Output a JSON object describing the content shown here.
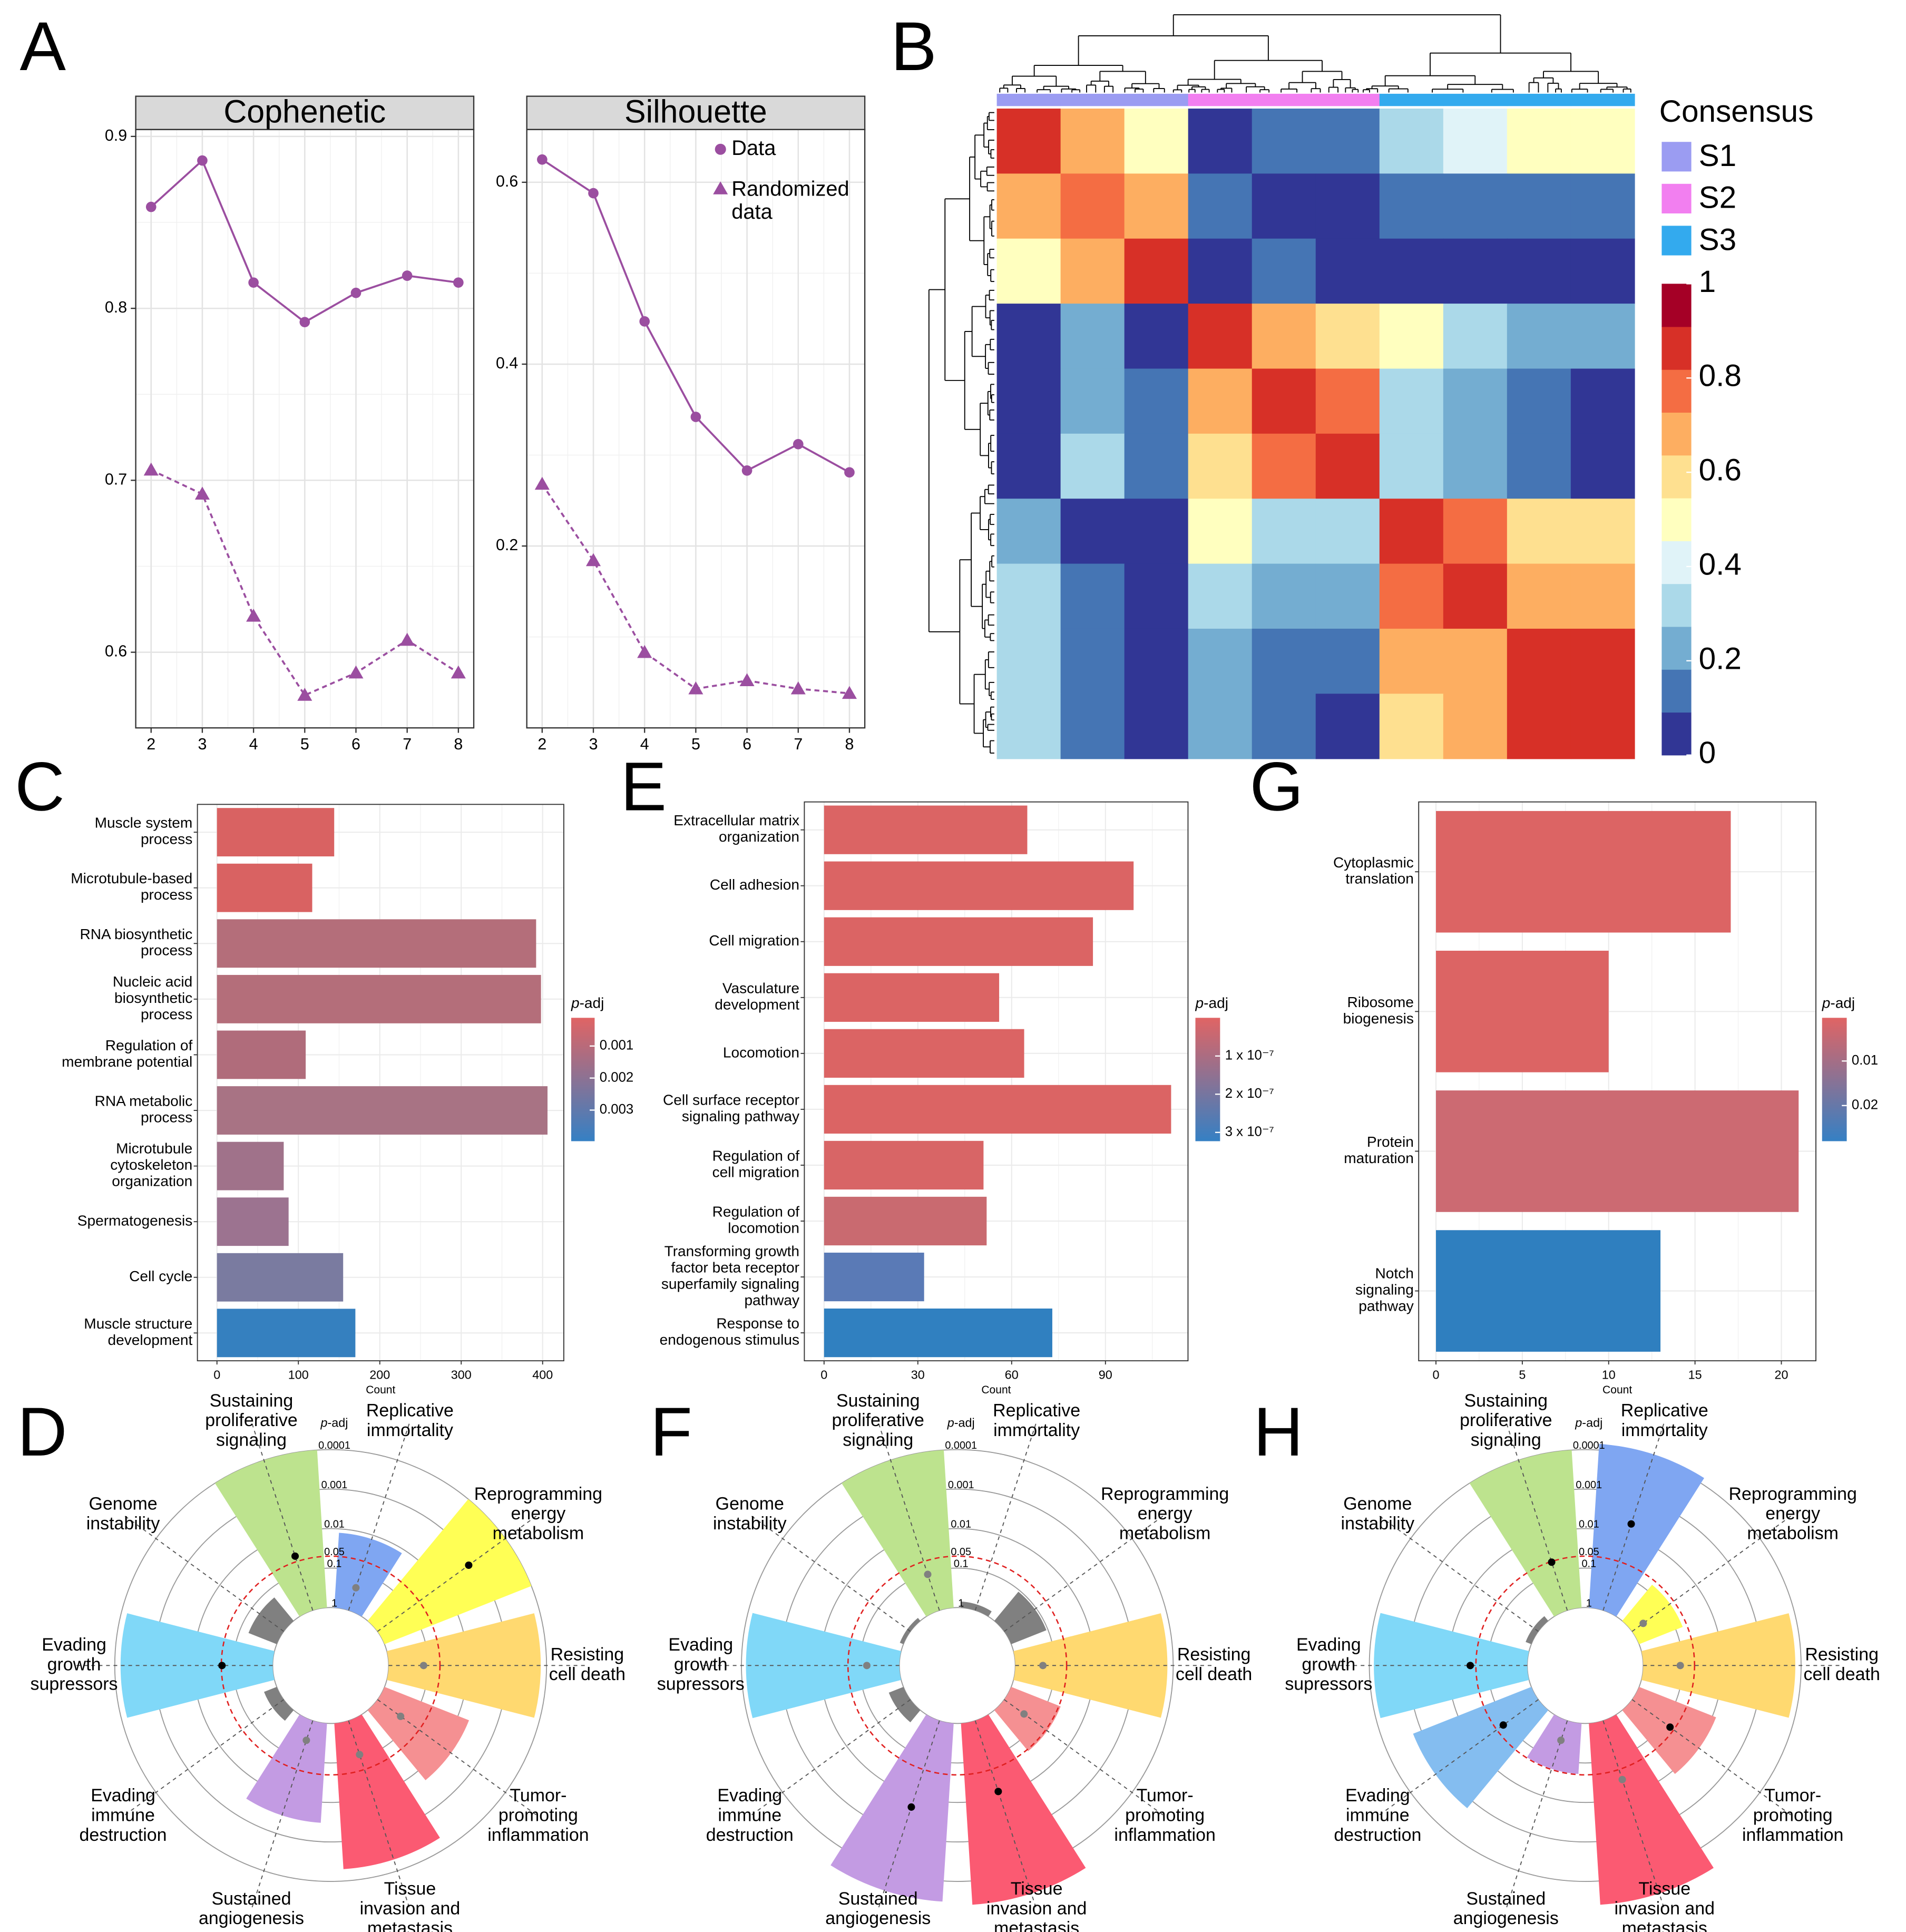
{
  "chart_data": [
    {
      "type": "line",
      "panel": "A",
      "title": "Cophenetic",
      "x": [
        2,
        3,
        4,
        5,
        6,
        7,
        8
      ],
      "xlim": [
        1.7,
        8.3
      ],
      "xticks": [
        2,
        3,
        4,
        5,
        6,
        7,
        8
      ],
      "ylim": [
        0.556,
        0.904
      ],
      "yticks": [
        0.6,
        0.7,
        0.8,
        0.9
      ],
      "grid": true,
      "series": [
        {
          "color": "#9b4ea0",
          "marker": "circle",
          "dashed": false,
          "values": [
            0.859,
            0.886,
            0.815,
            0.792,
            0.809,
            0.819,
            0.815
          ]
        },
        {
          "color": "#9b4ea0",
          "marker": "triangle",
          "dashed": true,
          "values": [
            0.706,
            0.692,
            0.621,
            0.575,
            0.588,
            0.607,
            0.588
          ]
        }
      ]
    },
    {
      "type": "line",
      "title": "Silhouette",
      "x": [
        2,
        3,
        4,
        5,
        6,
        7,
        8
      ],
      "xlim": [
        1.7,
        8.3
      ],
      "xticks": [
        2,
        3,
        4,
        5,
        6,
        7,
        8
      ],
      "ylim": [
        0.0,
        0.658
      ],
      "yticks": [
        0.2,
        0.4,
        0.6
      ],
      "grid": true,
      "legend": "top-right",
      "series": [
        {
          "name": "Data",
          "color": "#9b4ea0",
          "marker": "circle",
          "dashed": false,
          "values": [
            0.625,
            0.588,
            0.447,
            0.342,
            0.283,
            0.312,
            0.281
          ]
        },
        {
          "name": "Randomized\ndata",
          "color": "#9b4ea0",
          "marker": "triangle",
          "dashed": true,
          "values": [
            0.268,
            0.184,
            0.083,
            0.043,
            0.052,
            0.043,
            0.038
          ]
        }
      ]
    },
    {
      "type": "heatmap",
      "panel": "B",
      "legend_title": "Consensus",
      "groups": [
        {
          "name": "S1",
          "color": "#9b9cf2"
        },
        {
          "name": "S2",
          "color": "#f27ff0"
        },
        {
          "name": "S3",
          "color": "#33aaee"
        }
      ],
      "column_groups": [
        "S1",
        "S1",
        "S1",
        "S2",
        "S2",
        "S2",
        "S3",
        "S3",
        "S3",
        "S3"
      ],
      "matrix": [
        [
          0.9,
          0.7,
          0.5,
          0.05,
          0.1,
          0.1,
          0.3,
          0.4,
          0.5,
          0.5
        ],
        [
          0.7,
          0.8,
          0.7,
          0.1,
          0.05,
          0.05,
          0.1,
          0.1,
          0.1,
          0.1
        ],
        [
          0.5,
          0.7,
          0.9,
          0.05,
          0.1,
          0.05,
          0.05,
          0.05,
          0.05,
          0.05
        ],
        [
          0.05,
          0.2,
          0.05,
          0.9,
          0.7,
          0.6,
          0.5,
          0.3,
          0.2,
          0.2
        ],
        [
          0.05,
          0.2,
          0.1,
          0.7,
          0.9,
          0.8,
          0.3,
          0.2,
          0.1,
          0.05
        ],
        [
          0.05,
          0.3,
          0.1,
          0.6,
          0.8,
          0.9,
          0.3,
          0.2,
          0.1,
          0.05
        ],
        [
          0.2,
          0.05,
          0.05,
          0.5,
          0.3,
          0.3,
          0.9,
          0.8,
          0.6,
          0.6
        ],
        [
          0.3,
          0.1,
          0.05,
          0.3,
          0.2,
          0.2,
          0.8,
          0.9,
          0.7,
          0.7
        ],
        [
          0.3,
          0.1,
          0.05,
          0.2,
          0.1,
          0.1,
          0.7,
          0.7,
          0.9,
          0.9
        ],
        [
          0.3,
          0.1,
          0.05,
          0.2,
          0.1,
          0.05,
          0.6,
          0.7,
          0.9,
          0.9
        ]
      ],
      "zlim": [
        0,
        1
      ],
      "zticks": [
        0,
        0.2,
        0.4,
        0.6,
        0.8,
        1
      ],
      "colors": [
        "#313695",
        "#4575b4",
        "#74add1",
        "#abd9e9",
        "#e0f3f8",
        "#ffffbf",
        "#fee090",
        "#fdae61",
        "#f46d43",
        "#d73027",
        "#a50026"
      ]
    },
    {
      "type": "barh",
      "panel": "C",
      "categories": [
        "Muscle system\nprocess",
        "Microtubule-based\nprocess",
        "RNA biosynthetic\nprocess",
        "Nucleic acid\nbiosynthetic\nprocess",
        "Regulation of\nmembrane potential",
        "RNA metabolic\nprocess",
        "Microtubule\ncytoskeleton\norganization",
        "Spermatogenesis",
        "Cell cycle",
        "Muscle structure\ndevelopment"
      ],
      "values": [
        144,
        117,
        392,
        398,
        109,
        406,
        82,
        88,
        155,
        170
      ],
      "colors": [
        "#d96262",
        "#d96262",
        "#b46e7a",
        "#b46e7a",
        "#b06c7b",
        "#a87384",
        "#a0728a",
        "#9c7390",
        "#7a7ba0",
        "#3580bf"
      ],
      "xlabel": "Count",
      "xlim": [
        -24,
        426
      ],
      "xticks": [
        0,
        100,
        200,
        300,
        400
      ],
      "grid": true,
      "colorbar": {
        "title": "p-adj",
        "clim": [
          0.00012,
          0.00397
        ],
        "ticks": [
          0.001,
          0.002,
          0.003
        ],
        "colors": [
          "#e06464",
          "#3580c4"
        ]
      }
    },
    {
      "type": "barh",
      "panel": "E",
      "categories": [
        "Extracellular matrix\norganization",
        "Cell adhesion",
        "Cell migration",
        "Vasculature\ndevelopment",
        "Locomotion",
        "Cell surface receptor\nsignaling pathway",
        "Regulation of\ncell migration",
        "Regulation of\nlocomotion",
        "Transforming growth\nfactor beta receptor\nsuperfamily signaling\npathway",
        "Response to\nendogenous stimulus"
      ],
      "values": [
        65,
        99,
        86,
        56,
        64,
        111,
        51,
        52,
        32,
        73
      ],
      "colors": [
        "#db6464",
        "#db6464",
        "#db6464",
        "#db6464",
        "#db6464",
        "#db6464",
        "#d86566",
        "#c96a70",
        "#5a7ab6",
        "#3080c0"
      ],
      "xlabel": "Count",
      "xlim": [
        -6.3,
        116.4
      ],
      "xticks": [
        0,
        30,
        60,
        90
      ],
      "grid": true,
      "colorbar": {
        "title": "p-adj",
        "clim": [
          0,
          3.23e-07
        ],
        "ticks": [
          {
            "value": 1e-07,
            "label": "1 x 10⁻⁷"
          },
          {
            "value": 2e-07,
            "label": "2 x 10⁻⁷"
          },
          {
            "value": 3e-07,
            "label": "3 x 10⁻⁷"
          }
        ],
        "colors": [
          "#e06464",
          "#3580c4"
        ]
      }
    },
    {
      "type": "barh",
      "panel": "G",
      "categories": [
        "Cytoplasmic\ntranslation",
        "Ribosome\nbiogenesis",
        "Protein\nmaturation",
        "Notch\nsignaling\npathway"
      ],
      "values": [
        17.07,
        10,
        21,
        13
      ],
      "colors": [
        "#dc6464",
        "#dc6464",
        "#cc6a72",
        "#2f7fbf"
      ],
      "xlabel": "Count",
      "xlim": [
        -1,
        22
      ],
      "xticks": [
        0,
        5,
        10,
        15,
        20
      ],
      "grid": true,
      "colorbar": {
        "title": "p-adj",
        "clim": [
          0.0003,
          0.028
        ],
        "ticks": [
          0.01,
          0.02
        ],
        "colors": [
          "#e06464",
          "#3580c4"
        ]
      }
    },
    {
      "type": "polar",
      "panel": "D",
      "log": true,
      "categories": [
        "Replicative\nimmortality",
        "Reprogramming\nenergy\nmetabolism",
        "Resisting\ncell death",
        "Tumor-\npromoting\ninflammation",
        "Tissue\ninvasion and\nmetastasis",
        "Sustained\nangiogenesis",
        "Evading\nimmune\ndestruction",
        "Evading\ngrowth\nsupressors",
        "Genome\ninstability",
        "Sustaining\nproliferative\nsignaling"
      ],
      "values": [
        0.0126,
        0.0001,
        0.00014,
        0.005,
        0.0002,
        0.003,
        0.45,
        0.00014,
        0.17,
        0.0001
      ],
      "colors": [
        "#7fa6f2",
        "#ffff55",
        "#ffd970",
        "#f59092",
        "#fb5a72",
        "#c39be3",
        "#808080",
        "#80d8f8",
        "#808080",
        "#bde38e"
      ],
      "points": [
        0.25,
        0.0014,
        0.13,
        0.19,
        0.125,
        0.3,
        null,
        0.052,
        null,
        0.036
      ],
      "point_colors": [
        "#808080",
        "#000000",
        "#808080",
        "#808080",
        "#808080",
        "#808080",
        null,
        "#000000",
        null,
        "#000000"
      ],
      "rlabel": "p-adj",
      "rlim": [
        1,
        1e-05
      ],
      "rticks": [
        1,
        0.1,
        0.05,
        0.01,
        0.001,
        0.0001
      ],
      "threshold": 0.05
    },
    {
      "type": "polar",
      "panel": "F",
      "log": true,
      "categories": [
        "Replicative\nimmortality",
        "Reprogramming\nenergy\nmetabolism",
        "Resisting\ncell death",
        "Tumor-\npromoting\ninflammation",
        "Tissue\ninvasion and\nmetastasis",
        "Sustained\nangiogenesis",
        "Evading\nimmune\ndestruction",
        "Evading\ngrowth\nsupressors",
        "Genome\ninstability",
        "Sustaining\nproliferative\nsignaling"
      ],
      "values": [
        0.7,
        0.11,
        0.00014,
        0.045,
        2.5e-05,
        3e-05,
        0.4,
        0.00013,
        0.8,
        0.0001
      ],
      "colors": [
        "#808080",
        "#808080",
        "#ffd970",
        "#f59092",
        "#fb5a72",
        "#c39be3",
        "#808080",
        "#80d8f8",
        "#808080",
        "#bde38e"
      ],
      "points": [
        null,
        null,
        0.2,
        0.24,
        0.013,
        0.005,
        null,
        0.15,
        null,
        0.11
      ],
      "point_colors": [
        null,
        null,
        "#808080",
        "#808080",
        "#000000",
        "#000000",
        null,
        "#808080",
        null,
        "#808080"
      ],
      "rlabel": "p-adj",
      "rlim": [
        1,
        1e-05
      ],
      "rticks": [
        1,
        0.1,
        0.05,
        0.01,
        0.001,
        0.0001
      ],
      "threshold": 0.05
    },
    {
      "type": "polar",
      "panel": "H",
      "log": true,
      "categories": [
        "Replicative\nimmortality",
        "Reprogramming\nenergy\nmetabolism",
        "Resisting\ncell death",
        "Tumor-\npromoting\ninflammation",
        "Tissue\ninvasion and\nmetastasis",
        "Sustained\nangiogenesis",
        "Evading\nimmune\ndestruction",
        "Evading\ngrowth\nsupressors",
        "Genome\ninstability",
        "Sustaining\nproliferative\nsignaling"
      ],
      "values": [
        7e-05,
        0.065,
        0.00014,
        0.008,
        2.5e-05,
        0.052,
        0.0006,
        0.00013,
        0.7,
        0.0001
      ],
      "colors": [
        "#7fa6f2",
        "#ffff55",
        "#ffd970",
        "#f59092",
        "#fb5a72",
        "#c39be3",
        "#84bdf0",
        "#80d8f8",
        "#808080",
        "#bde38e"
      ],
      "points": [
        0.005,
        0.45,
        0.115,
        0.065,
        0.027,
        0.3,
        0.08,
        0.036,
        null,
        0.052
      ],
      "point_colors": [
        "#000000",
        "#808080",
        "#808080",
        "#000000",
        "#808080",
        "#808080",
        "#000000",
        "#000000",
        null,
        "#000000"
      ],
      "rlabel": "p-adj",
      "rlim": [
        1,
        1e-05
      ],
      "rticks": [
        1,
        0.1,
        0.05,
        0.01,
        0.001,
        0.0001
      ],
      "threshold": 0.05
    }
  ]
}
